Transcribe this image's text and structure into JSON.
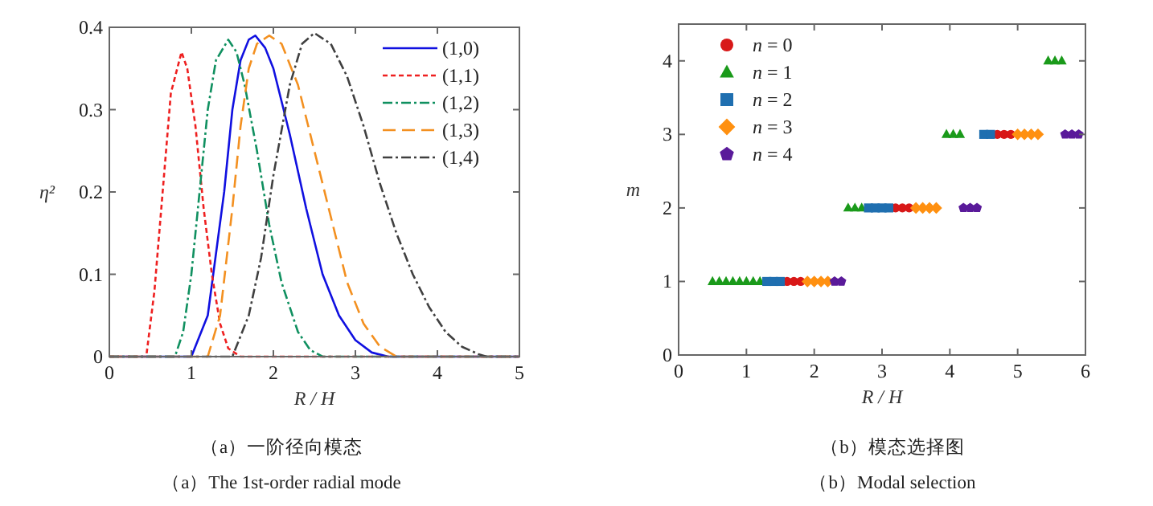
{
  "chart_data": [
    {
      "type": "line",
      "xlabel": "R / H",
      "ylabel": "η²",
      "xlim": [
        0,
        5
      ],
      "ylim": [
        0,
        0.4
      ],
      "xticks": [
        0,
        1,
        2,
        3,
        4,
        5
      ],
      "yticks": [
        0,
        0.1,
        0.2,
        0.3,
        0.4
      ],
      "legend": "top right",
      "grid": false,
      "series": [
        {
          "name": "(1,0)",
          "color": "#1010e0",
          "line_style": "solid",
          "x": [
            0,
            1.0,
            1.2,
            1.4,
            1.5,
            1.6,
            1.7,
            1.78,
            1.9,
            2.0,
            2.1,
            2.2,
            2.4,
            2.6,
            2.8,
            3.0,
            3.2,
            3.4,
            5
          ],
          "values": [
            0,
            0,
            0.05,
            0.2,
            0.3,
            0.36,
            0.385,
            0.39,
            0.375,
            0.35,
            0.31,
            0.27,
            0.18,
            0.1,
            0.05,
            0.02,
            0.005,
            0,
            0
          ]
        },
        {
          "name": "(1,1)",
          "color": "#ee2020",
          "line_style": "dashed",
          "x": [
            0,
            0.45,
            0.55,
            0.65,
            0.75,
            0.88,
            0.95,
            1.05,
            1.15,
            1.25,
            1.35,
            1.45,
            1.6,
            5
          ],
          "values": [
            0,
            0,
            0.08,
            0.2,
            0.32,
            0.37,
            0.35,
            0.28,
            0.18,
            0.1,
            0.04,
            0.01,
            0,
            0
          ]
        },
        {
          "name": "(1,2)",
          "color": "#109060",
          "line_style": "dashdot",
          "x": [
            0,
            0.8,
            0.9,
            1.0,
            1.1,
            1.2,
            1.3,
            1.45,
            1.55,
            1.65,
            1.8,
            1.95,
            2.1,
            2.3,
            2.45,
            2.6,
            5
          ],
          "values": [
            0,
            0,
            0.03,
            0.1,
            0.2,
            0.3,
            0.36,
            0.385,
            0.37,
            0.33,
            0.25,
            0.16,
            0.09,
            0.03,
            0.008,
            0,
            0
          ]
        },
        {
          "name": "(1,3)",
          "color": "#f39020",
          "line_style": "longdashed",
          "x": [
            0,
            1.2,
            1.35,
            1.5,
            1.6,
            1.7,
            1.8,
            1.95,
            2.1,
            2.3,
            2.5,
            2.7,
            2.9,
            3.1,
            3.3,
            3.5,
            5
          ],
          "values": [
            0,
            0,
            0.05,
            0.18,
            0.28,
            0.35,
            0.38,
            0.39,
            0.38,
            0.33,
            0.25,
            0.17,
            0.09,
            0.04,
            0.012,
            0,
            0
          ]
        },
        {
          "name": "(1,4)",
          "color": "#404040",
          "line_style": "dashdot",
          "x": [
            0,
            1.5,
            1.7,
            1.85,
            2.0,
            2.2,
            2.35,
            2.5,
            2.7,
            2.9,
            3.1,
            3.3,
            3.5,
            3.7,
            3.9,
            4.1,
            4.3,
            4.5,
            4.6,
            5
          ],
          "values": [
            0,
            0,
            0.05,
            0.12,
            0.22,
            0.33,
            0.38,
            0.393,
            0.38,
            0.34,
            0.28,
            0.21,
            0.15,
            0.1,
            0.06,
            0.03,
            0.012,
            0.003,
            0,
            0
          ]
        }
      ],
      "annotations": [
        "（a）一阶径向模态",
        "（a）The 1st-order radial mode"
      ]
    },
    {
      "type": "scatter",
      "xlabel": "R / H",
      "ylabel": "m",
      "xlim": [
        0,
        6
      ],
      "ylim": [
        0,
        4.5
      ],
      "xticks": [
        0,
        1,
        2,
        3,
        4,
        5,
        6
      ],
      "yticks": [
        0,
        1,
        2,
        3,
        4
      ],
      "legend": "top left",
      "grid": false,
      "series": [
        {
          "name": "*n* = 0",
          "color": "#d81818",
          "marker": "circle",
          "x": [
            1.6,
            1.7,
            1.8,
            3.2,
            3.3,
            3.4,
            4.7,
            4.8,
            4.9
          ],
          "values": [
            1,
            1,
            1,
            2,
            2,
            2,
            3,
            3,
            3
          ]
        },
        {
          "name": "*n* = 1",
          "color": "#1a9a1a",
          "marker": "triangle",
          "x": [
            0.5,
            0.6,
            0.7,
            0.8,
            0.9,
            1.0,
            1.1,
            1.2,
            2.5,
            2.6,
            2.7,
            3.95,
            4.05,
            4.15,
            5.45,
            5.55,
            5.65
          ],
          "values": [
            1,
            1,
            1,
            1,
            1,
            1,
            1,
            1,
            2,
            2,
            2,
            3,
            3,
            3,
            4,
            4,
            4
          ]
        },
        {
          "name": "*n* = 2",
          "color": "#1f6fb0",
          "marker": "square",
          "x": [
            1.3,
            1.4,
            1.5,
            2.8,
            2.9,
            3.0,
            3.1,
            4.5,
            4.6
          ],
          "values": [
            1,
            1,
            1,
            2,
            2,
            2,
            2,
            3,
            3
          ]
        },
        {
          "name": "*n* = 3",
          "color": "#ff9010",
          "marker": "diamond",
          "x": [
            1.9,
            2.0,
            2.1,
            2.2,
            3.5,
            3.6,
            3.7,
            3.8,
            5.0,
            5.1,
            5.2,
            5.3
          ],
          "values": [
            1,
            1,
            1,
            1,
            2,
            2,
            2,
            2,
            3,
            3,
            3,
            3
          ]
        },
        {
          "name": "*n* = 4",
          "color": "#5a1a9a",
          "x": [
            2.3,
            2.4,
            4.2,
            4.3,
            4.4,
            5.7,
            5.8,
            5.9
          ],
          "values": [
            1,
            1,
            2,
            2,
            2,
            3,
            3,
            3
          ]
        }
      ],
      "annotations": [
        "（b）模态选择图",
        "（b）Modal selection"
      ]
    }
  ]
}
